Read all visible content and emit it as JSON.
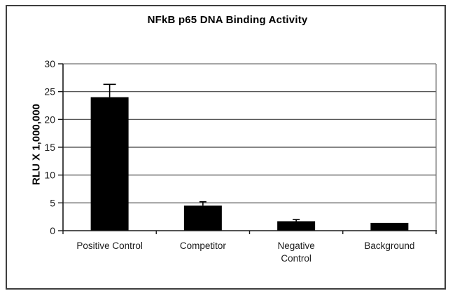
{
  "figure": {
    "background": "#ffffff",
    "border_color": "#3d3d3d"
  },
  "chart_data": {
    "type": "bar",
    "title": "NFkB p65 DNA Binding Activity",
    "xlabel": "",
    "ylabel": "RLU X 1,000,000",
    "categories": [
      "Positive Control",
      "Competitor",
      "Negative Control",
      "Background"
    ],
    "category_label_lines": [
      [
        "Positive Control"
      ],
      [
        "Competitor"
      ],
      [
        "Negative",
        "Control"
      ],
      [
        "Background"
      ]
    ],
    "values": [
      24,
      4.5,
      1.7,
      1.4
    ],
    "error_up": [
      2.3,
      0.7,
      0.3,
      0
    ],
    "ylim": [
      0,
      30
    ],
    "yticks": [
      0,
      5,
      10,
      15,
      20,
      25,
      30
    ],
    "grid": true,
    "legend_position": "none",
    "bar_color": "#000000",
    "gridline_color": "#3f3f3f",
    "top_gridline_color": "#a6a6a6",
    "right_border_color": "#6e6e6e",
    "axis_color": "#1a1a1a",
    "tick_label_color": "#1a1a1a",
    "error_bar_color": "#000000"
  }
}
